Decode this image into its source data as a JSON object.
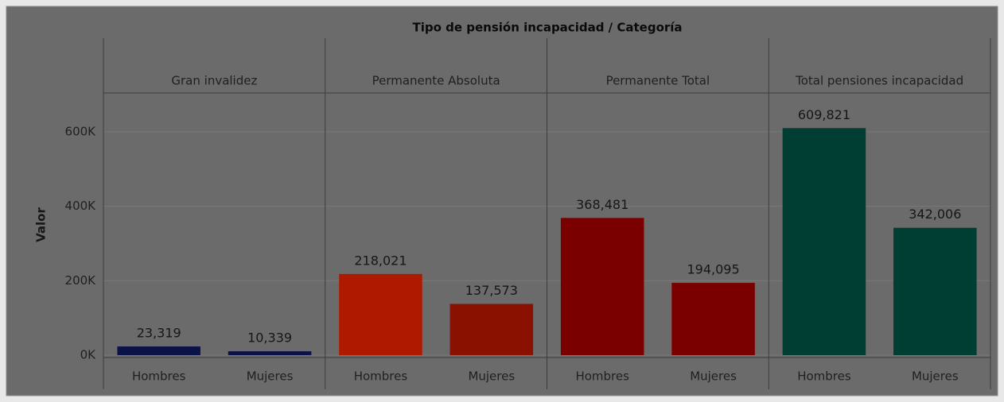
{
  "chart_data": {
    "type": "bar",
    "title": "Tipo de pensión incapacidad / Categoría",
    "y_label": "Valor",
    "ylim": [
      0,
      700000
    ],
    "yticks": [
      {
        "value": 0,
        "label": "0K"
      },
      {
        "value": 200000,
        "label": "200K"
      },
      {
        "value": 400000,
        "label": "400K"
      },
      {
        "value": 600000,
        "label": "600K"
      }
    ],
    "grid": true,
    "groups": [
      {
        "name": "Gran invalidez",
        "categories": [
          "Hombres",
          "Mujeres"
        ],
        "values": [
          23319,
          10339
        ],
        "value_labels": [
          "23,319",
          "10,339"
        ],
        "colors": [
          "#0c1248",
          "#0c1248"
        ]
      },
      {
        "name": "Permanente Absoluta",
        "categories": [
          "Hombres",
          "Mujeres"
        ],
        "values": [
          218021,
          137573
        ],
        "value_labels": [
          "218,021",
          "137,573"
        ],
        "colors": [
          "#ad1a00",
          "#8a1000"
        ]
      },
      {
        "name": "Permanente Total",
        "categories": [
          "Hombres",
          "Mujeres"
        ],
        "values": [
          368481,
          194095
        ],
        "value_labels": [
          "368,481",
          "194,095"
        ],
        "colors": [
          "#7a0000",
          "#7a0000"
        ]
      },
      {
        "name": "Total pensiones incapacidad",
        "categories": [
          "Hombres",
          "Mujeres"
        ],
        "values": [
          609821,
          342006
        ],
        "value_labels": [
          "609,821",
          "342,006"
        ],
        "colors": [
          "#003d33",
          "#003d33"
        ]
      }
    ]
  }
}
